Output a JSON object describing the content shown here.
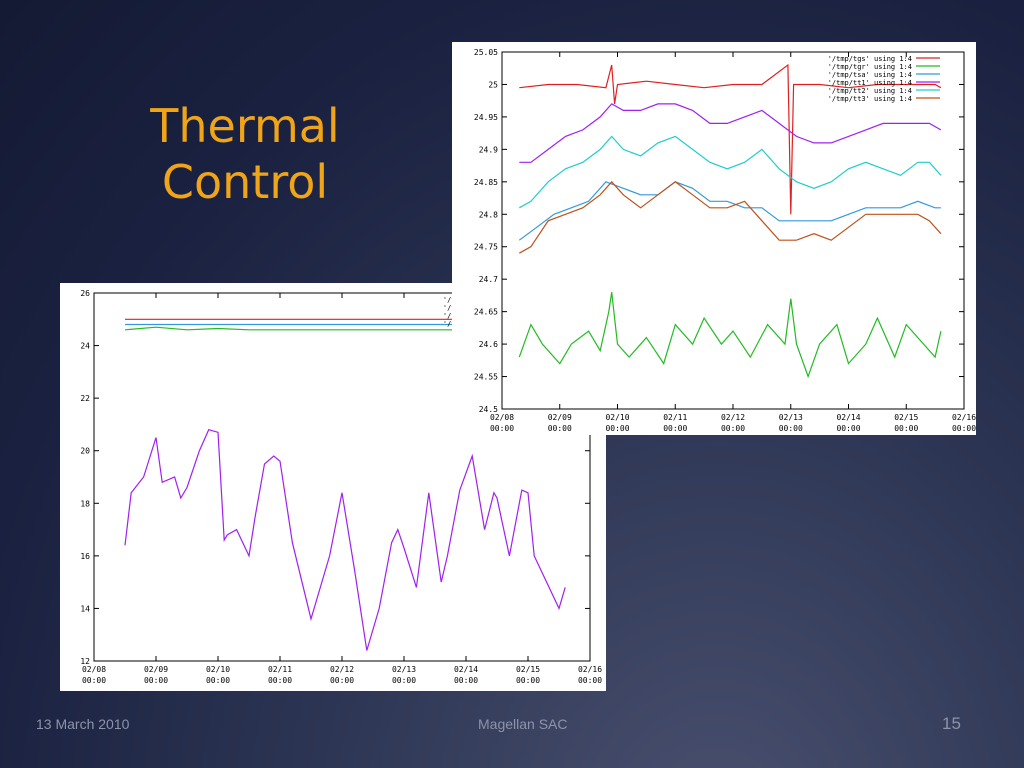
{
  "slide": {
    "title_line1": "Thermal",
    "title_line2": "Control",
    "footer_date": "13 March 2010",
    "footer_center": "Magellan SAC",
    "page_number": "15"
  },
  "colors": {
    "title": "#f0a418",
    "background": "#1a2140"
  },
  "chart_data": [
    {
      "type": "line",
      "ylim": [
        12,
        26
      ],
      "yticks": [
        "12",
        "14",
        "16",
        "18",
        "20",
        "22",
        "24",
        "26"
      ],
      "xticks": [
        {
          "date": "02/08",
          "time": "00:00"
        },
        {
          "date": "02/09",
          "time": "00:00"
        },
        {
          "date": "02/10",
          "time": "00:00"
        },
        {
          "date": "02/11",
          "time": "00:00"
        },
        {
          "date": "02/12",
          "time": "00:00"
        },
        {
          "date": "02/13",
          "time": "00:00"
        },
        {
          "date": "02/14",
          "time": "00:00"
        },
        {
          "date": "02/15",
          "time": "00:00"
        },
        {
          "date": "02/16",
          "time": "00:00"
        }
      ],
      "xlim": [
        0,
        8
      ],
      "legend_position": "top-right",
      "series": [
        {
          "name": "'/tmp",
          "color": "#e02020",
          "x": [
            0.5,
            2.0,
            3.5,
            4.7,
            5.0,
            6.0,
            7.0,
            7.6
          ],
          "y": [
            25.0,
            25.0,
            25.0,
            25.0,
            25.0,
            25.0,
            25.0,
            25.0
          ]
        },
        {
          "name": "'/tmp",
          "color": "#3399dd",
          "x": [
            0.5,
            2.0,
            3.5,
            5.0,
            6.0,
            7.0,
            7.6
          ],
          "y": [
            24.8,
            24.8,
            24.8,
            24.8,
            24.8,
            24.8,
            24.8
          ]
        },
        {
          "name": "'/tmp",
          "color": "#a020f0",
          "x": [
            0.5,
            0.6,
            0.8,
            1.0,
            1.1,
            1.3,
            1.4,
            1.5,
            1.7,
            1.85,
            2.0,
            2.1,
            2.15,
            2.3,
            2.5,
            2.6,
            2.75,
            2.9,
            3.0,
            3.2,
            3.5,
            3.8,
            4.0,
            4.2,
            4.4,
            4.6,
            4.8,
            4.9,
            5.0,
            5.2,
            5.4,
            5.6,
            5.7,
            5.9,
            6.1,
            6.3,
            6.45,
            6.5,
            6.7,
            6.9,
            7.0,
            7.1,
            7.3,
            7.5,
            7.6
          ],
          "y": [
            16.4,
            18.4,
            19.0,
            20.5,
            18.8,
            19.0,
            18.2,
            18.6,
            20.0,
            20.8,
            20.7,
            16.6,
            16.8,
            17.0,
            16.0,
            17.5,
            19.5,
            19.8,
            19.6,
            16.5,
            13.6,
            16.0,
            18.4,
            15.5,
            12.4,
            14.0,
            16.5,
            17.0,
            16.3,
            14.8,
            18.4,
            15.0,
            16.0,
            18.5,
            19.8,
            17.0,
            18.4,
            18.2,
            16.0,
            18.5,
            18.4,
            16.0,
            15.0,
            14.0,
            14.8
          ]
        },
        {
          "name": "'/tmp",
          "color": "#22bb22",
          "x": [
            0.5,
            1.0,
            1.5,
            2.0,
            2.5,
            3.0,
            3.5,
            4.0,
            4.5,
            5.0,
            5.5,
            6.0,
            6.5,
            7.0,
            7.6
          ],
          "y": [
            24.6,
            24.7,
            24.6,
            24.65,
            24.6,
            24.6,
            24.6,
            24.6,
            24.6,
            24.6,
            24.6,
            24.6,
            24.6,
            24.6,
            24.6
          ]
        }
      ]
    },
    {
      "type": "line",
      "ylim": [
        24.5,
        25.05
      ],
      "yticks": [
        "24.5",
        "24.55",
        "24.6",
        "24.65",
        "24.7",
        "24.75",
        "24.8",
        "24.85",
        "24.9",
        "24.95",
        "25",
        "25.05"
      ],
      "xticks": [
        {
          "date": "02/08",
          "time": "00:00"
        },
        {
          "date": "02/09",
          "time": "00:00"
        },
        {
          "date": "02/10",
          "time": "00:00"
        },
        {
          "date": "02/11",
          "time": "00:00"
        },
        {
          "date": "02/12",
          "time": "00:00"
        },
        {
          "date": "02/13",
          "time": "00:00"
        },
        {
          "date": "02/14",
          "time": "00:00"
        },
        {
          "date": "02/15",
          "time": "00:00"
        },
        {
          "date": "02/16",
          "time": "00:00"
        }
      ],
      "xlim": [
        0,
        8
      ],
      "legend_position": "top-right",
      "series": [
        {
          "name": "'/tmp/tgs' using 1:4",
          "color": "#e02020",
          "x": [
            0.3,
            0.8,
            1.3,
            1.8,
            1.9,
            1.95,
            2.0,
            2.5,
            3.0,
            3.5,
            4.0,
            4.5,
            4.95,
            5.0,
            5.05,
            5.5,
            6.0,
            6.5,
            7.0,
            7.5,
            7.6
          ],
          "y": [
            24.995,
            25.0,
            25.0,
            24.995,
            25.03,
            24.97,
            25.0,
            25.005,
            25.0,
            24.995,
            25.0,
            25.0,
            25.03,
            24.8,
            25.0,
            25.0,
            24.995,
            25.0,
            25.0,
            25.0,
            24.995
          ]
        },
        {
          "name": "'/tmp/tgr' using 1:4",
          "color": "#22bb22",
          "x": [
            0.3,
            0.5,
            0.7,
            1.0,
            1.2,
            1.5,
            1.7,
            1.85,
            1.9,
            2.0,
            2.2,
            2.5,
            2.8,
            3.0,
            3.3,
            3.5,
            3.8,
            4.0,
            4.3,
            4.6,
            4.9,
            5.0,
            5.1,
            5.3,
            5.5,
            5.8,
            6.0,
            6.3,
            6.5,
            6.8,
            7.0,
            7.3,
            7.5,
            7.6
          ],
          "y": [
            24.58,
            24.63,
            24.6,
            24.57,
            24.6,
            24.62,
            24.59,
            24.65,
            24.68,
            24.6,
            24.58,
            24.61,
            24.57,
            24.63,
            24.6,
            24.64,
            24.6,
            24.62,
            24.58,
            24.63,
            24.6,
            24.67,
            24.6,
            24.55,
            24.6,
            24.63,
            24.57,
            24.6,
            24.64,
            24.58,
            24.63,
            24.6,
            24.58,
            24.62
          ]
        },
        {
          "name": "'/tmp/tsa' using 1:4",
          "color": "#3399dd",
          "x": [
            0.3,
            0.6,
            0.9,
            1.2,
            1.5,
            1.8,
            2.1,
            2.4,
            2.7,
            3.0,
            3.3,
            3.6,
            3.9,
            4.2,
            4.5,
            4.8,
            5.1,
            5.4,
            5.7,
            6.0,
            6.3,
            6.6,
            6.9,
            7.2,
            7.5,
            7.6
          ],
          "y": [
            24.76,
            24.78,
            24.8,
            24.81,
            24.82,
            24.85,
            24.84,
            24.83,
            24.83,
            24.85,
            24.84,
            24.82,
            24.82,
            24.81,
            24.81,
            24.79,
            24.79,
            24.79,
            24.79,
            24.8,
            24.81,
            24.81,
            24.81,
            24.82,
            24.81,
            24.81
          ]
        },
        {
          "name": "'/tmp/tt1' using 1:4",
          "color": "#a020f0",
          "x": [
            0.3,
            0.5,
            0.8,
            1.1,
            1.4,
            1.7,
            1.9,
            2.1,
            2.4,
            2.7,
            3.0,
            3.3,
            3.6,
            3.9,
            4.2,
            4.5,
            4.8,
            5.1,
            5.4,
            5.7,
            6.0,
            6.3,
            6.6,
            6.9,
            7.2,
            7.4,
            7.6
          ],
          "y": [
            24.88,
            24.88,
            24.9,
            24.92,
            24.93,
            24.95,
            24.97,
            24.96,
            24.96,
            24.97,
            24.97,
            24.96,
            24.94,
            24.94,
            24.95,
            24.96,
            24.94,
            24.92,
            24.91,
            24.91,
            24.92,
            24.93,
            24.94,
            24.94,
            24.94,
            24.94,
            24.93
          ]
        },
        {
          "name": "'/tmp/tt2' using 1:4",
          "color": "#22cccc",
          "x": [
            0.3,
            0.5,
            0.8,
            1.1,
            1.4,
            1.7,
            1.9,
            2.1,
            2.4,
            2.7,
            3.0,
            3.3,
            3.6,
            3.9,
            4.2,
            4.5,
            4.8,
            5.1,
            5.4,
            5.7,
            6.0,
            6.3,
            6.6,
            6.9,
            7.2,
            7.4,
            7.6
          ],
          "y": [
            24.81,
            24.82,
            24.85,
            24.87,
            24.88,
            24.9,
            24.92,
            24.9,
            24.89,
            24.91,
            24.92,
            24.9,
            24.88,
            24.87,
            24.88,
            24.9,
            24.87,
            24.85,
            24.84,
            24.85,
            24.87,
            24.88,
            24.87,
            24.86,
            24.88,
            24.88,
            24.86
          ]
        },
        {
          "name": "'/tmp/tt3' using 1:4",
          "color": "#c0501a",
          "x": [
            0.3,
            0.5,
            0.8,
            1.1,
            1.4,
            1.7,
            1.9,
            2.1,
            2.4,
            2.7,
            3.0,
            3.3,
            3.6,
            3.9,
            4.2,
            4.5,
            4.8,
            5.1,
            5.4,
            5.7,
            6.0,
            6.3,
            6.6,
            6.9,
            7.2,
            7.4,
            7.6
          ],
          "y": [
            24.74,
            24.75,
            24.79,
            24.8,
            24.81,
            24.83,
            24.85,
            24.83,
            24.81,
            24.83,
            24.85,
            24.83,
            24.81,
            24.81,
            24.82,
            24.79,
            24.76,
            24.76,
            24.77,
            24.76,
            24.78,
            24.8,
            24.8,
            24.8,
            24.8,
            24.79,
            24.77
          ]
        }
      ]
    }
  ]
}
